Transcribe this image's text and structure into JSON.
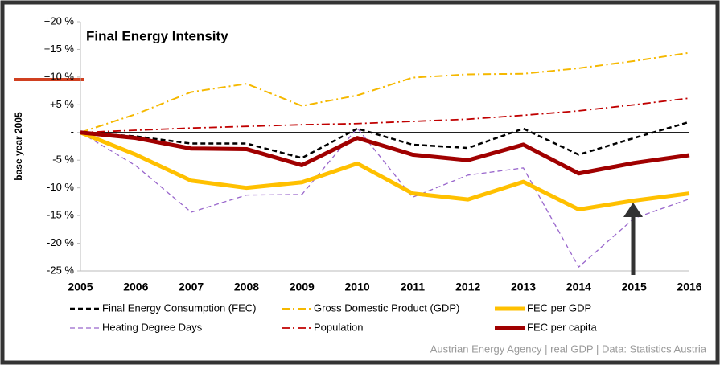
{
  "chart_data": {
    "type": "line",
    "title": "Final Energy Intensity",
    "y_label": "base year 2005",
    "source": "Austrian Energy Agency | real GDP |  Data: Statistics Austria",
    "categories": [
      "2005",
      "2006",
      "2007",
      "2008",
      "2009",
      "2010",
      "2011",
      "2012",
      "2013",
      "2014",
      "2015",
      "2016"
    ],
    "ylim": [
      -25,
      20
    ],
    "yticks": [
      {
        "value": -25,
        "label": "-25 %"
      },
      {
        "value": -20,
        "label": "-20 %"
      },
      {
        "value": -15,
        "label": "-15 %"
      },
      {
        "value": -10,
        "label": "-10 %"
      },
      {
        "value": -5,
        "label": "-5 %"
      },
      {
        "value": 0,
        "label": "-"
      },
      {
        "value": 5,
        "label": "+5 %"
      },
      {
        "value": 10,
        "label": "+10 %"
      },
      {
        "value": 15,
        "label": "+15 %"
      },
      {
        "value": 20,
        "label": "+20 %"
      }
    ],
    "series": [
      {
        "name": "Final Energy Consumption (FEC)",
        "color": "#000000",
        "dash": "dashed",
        "width": 2.5,
        "values": [
          0,
          -0.7,
          -2,
          -2,
          -4.6,
          0.7,
          -2.2,
          -2.8,
          0.7,
          -4,
          -1,
          1.9
        ]
      },
      {
        "name": "Gross Domestic Product (GDP)",
        "color": "#f5b800",
        "dash": "dashdot",
        "width": 2,
        "values": [
          0,
          3.3,
          7.3,
          8.8,
          4.8,
          6.7,
          9.9,
          10.5,
          10.6,
          11.6,
          12.9,
          14.4
        ]
      },
      {
        "name": "FEC per GDP",
        "color": "#ffc000",
        "dash": "solid",
        "width": 5,
        "values": [
          0,
          -4,
          -8.7,
          -10,
          -9,
          -5.6,
          -11,
          -12.1,
          -8.9,
          -13.9,
          -12.3,
          -11
        ]
      },
      {
        "name": "Heating Degree Days",
        "color": "#9966cc",
        "dash": "dashed",
        "width": 1.3,
        "values": [
          0,
          -6,
          -14.4,
          -11.3,
          -11.2,
          0.8,
          -11.7,
          -7.7,
          -6.4,
          -24.3,
          -15.5,
          -12
        ]
      },
      {
        "name": "Population",
        "color": "#c00000",
        "dash": "dashdot",
        "width": 1.8,
        "values": [
          0,
          0.4,
          0.8,
          1.1,
          1.4,
          1.6,
          2,
          2.4,
          3.1,
          3.9,
          5,
          6.2
        ]
      },
      {
        "name": "FEC per capita",
        "color": "#a00000",
        "dash": "solid",
        "width": 5,
        "values": [
          0,
          -1,
          -2.9,
          -3,
          -5.9,
          -1,
          -4,
          -5,
          -2.2,
          -7.4,
          -5.5,
          -4.1
        ]
      }
    ]
  }
}
